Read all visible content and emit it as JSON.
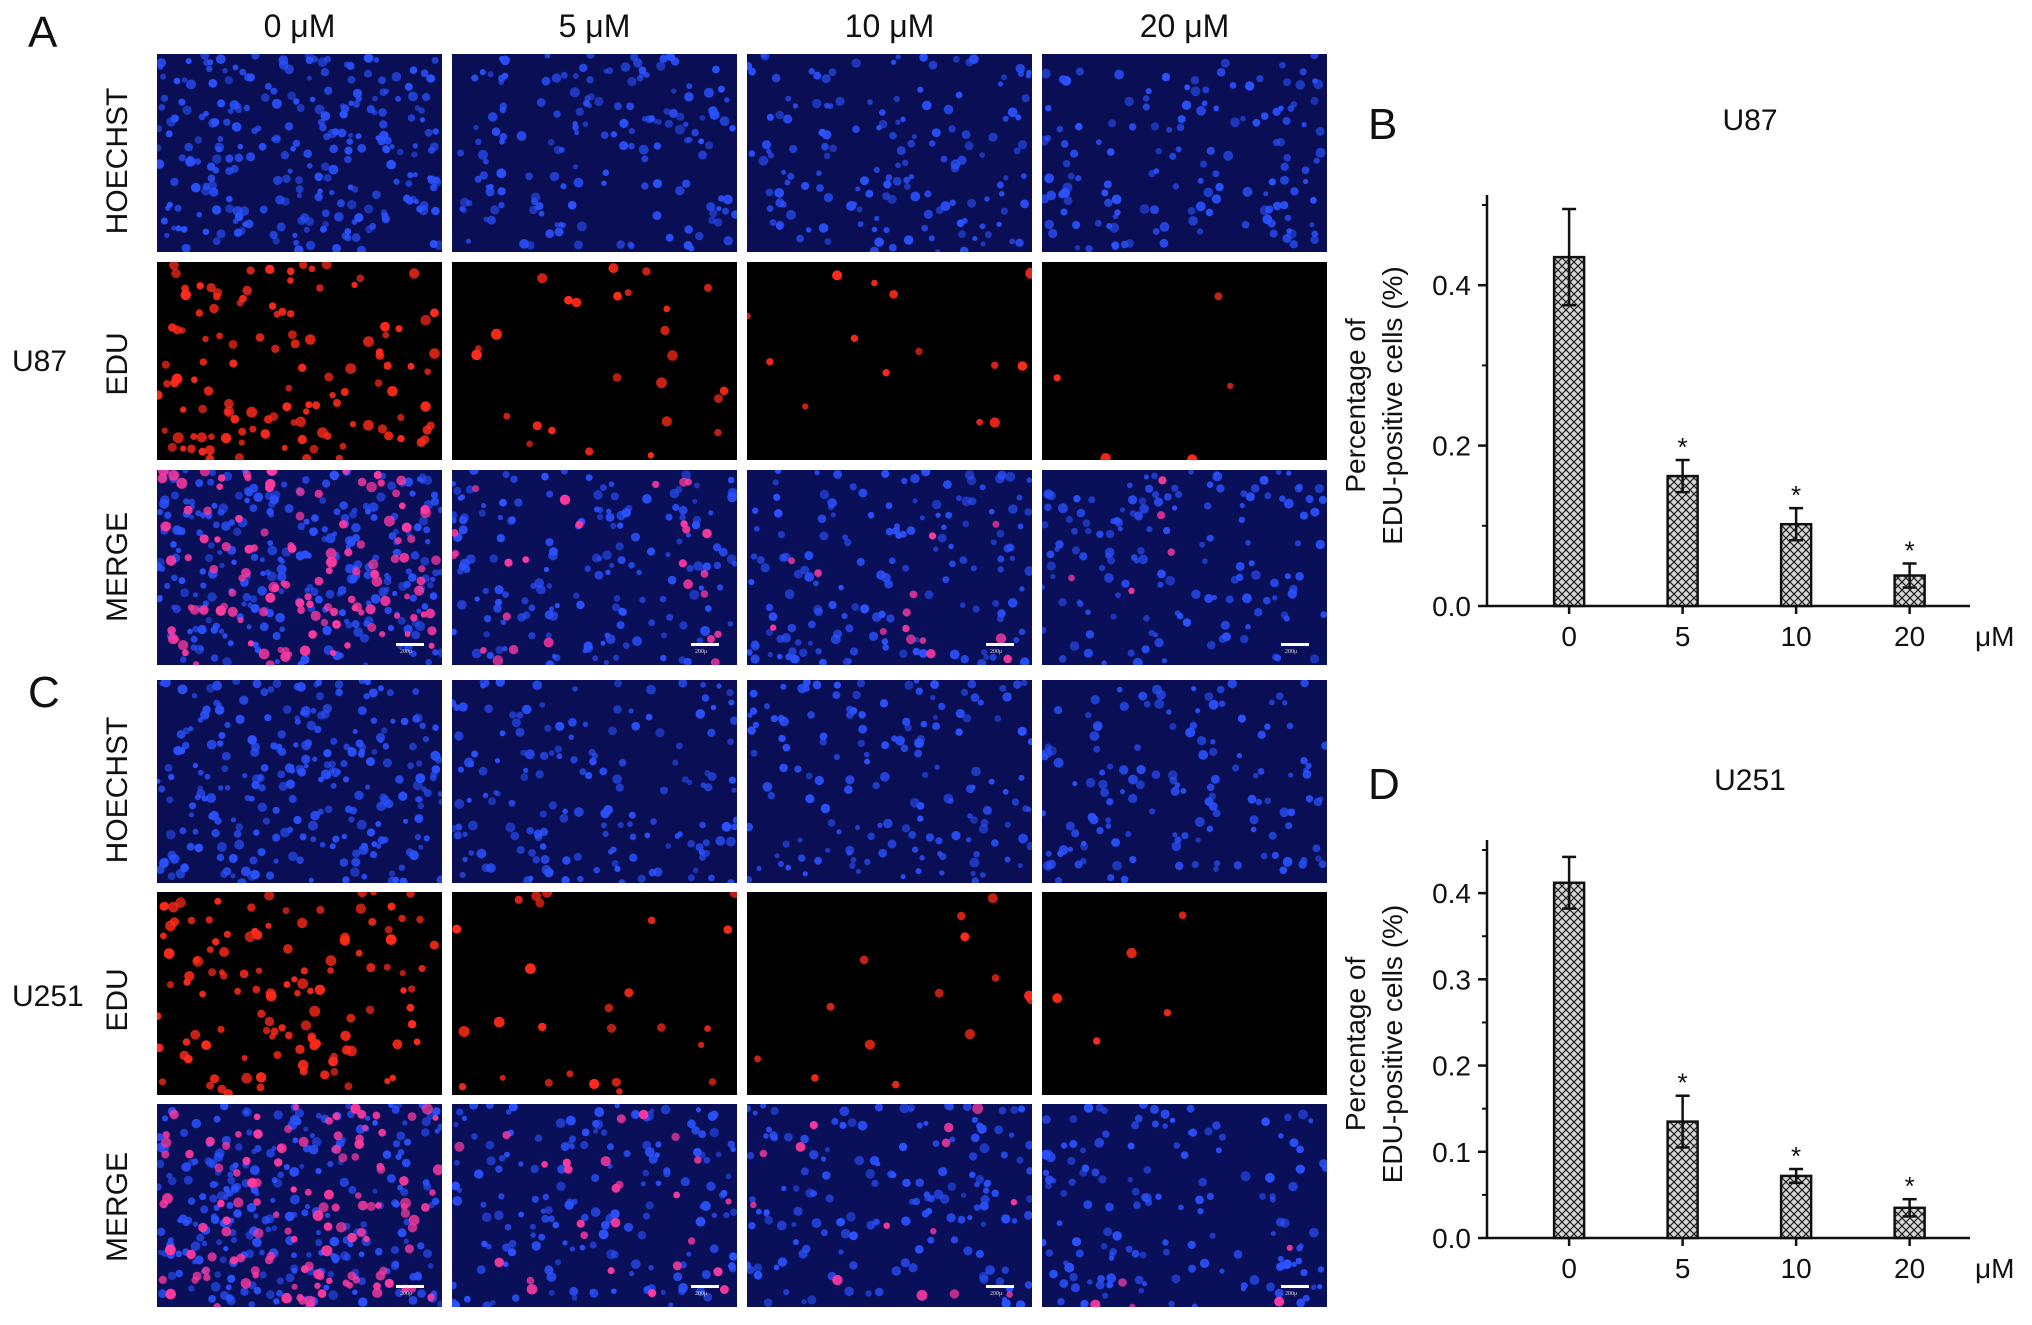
{
  "panels": {
    "A": "A",
    "B": "B",
    "C": "C",
    "D": "D"
  },
  "column_headers": [
    "0 μM",
    "5 μM",
    "10 μM",
    "20 μM"
  ],
  "row_labels": [
    "HOECHST",
    "EDU",
    "MERGE"
  ],
  "cell_lines": [
    "U87",
    "U251"
  ],
  "scale_label": "200μ",
  "colors": {
    "hoechst_bg": "#0a0f55",
    "hoechst_dot": "#2a52ff",
    "edu_bg": "#000000",
    "edu_dot": "#ff2a1a",
    "merge_bg": "#0a0f5a",
    "merge_dot": "#ff3aa0"
  },
  "chart_data": [
    {
      "type": "bar",
      "title": "U87",
      "categories": [
        "0",
        "5",
        "10",
        "20"
      ],
      "values": [
        0.435,
        0.162,
        0.102,
        0.038
      ],
      "errors": [
        0.06,
        0.02,
        0.02,
        0.015
      ],
      "significance": [
        "",
        "*",
        "*",
        "*"
      ],
      "ylabel_line1": "Percentage of",
      "ylabel_line2": "EDU-positive cells (%)",
      "xunit": "μM",
      "ylim": [
        0,
        0.5
      ],
      "yticks": [
        "0.0",
        "0.2",
        "0.4"
      ],
      "ytick_values": [
        0,
        0.2,
        0.4
      ]
    },
    {
      "type": "bar",
      "title": "U251",
      "categories": [
        "0",
        "5",
        "10",
        "20"
      ],
      "values": [
        0.412,
        0.135,
        0.072,
        0.035
      ],
      "errors": [
        0.03,
        0.03,
        0.008,
        0.01
      ],
      "significance": [
        "",
        "*",
        "*",
        "*"
      ],
      "ylabel_line1": "Percentage of",
      "ylabel_line2": "EDU-positive cells (%)",
      "xunit": "μM",
      "ylim": [
        0,
        0.45
      ],
      "yticks": [
        "0.0",
        "0.1",
        "0.2",
        "0.3",
        "0.4"
      ],
      "ytick_values": [
        0,
        0.1,
        0.2,
        0.3,
        0.4
      ]
    }
  ]
}
